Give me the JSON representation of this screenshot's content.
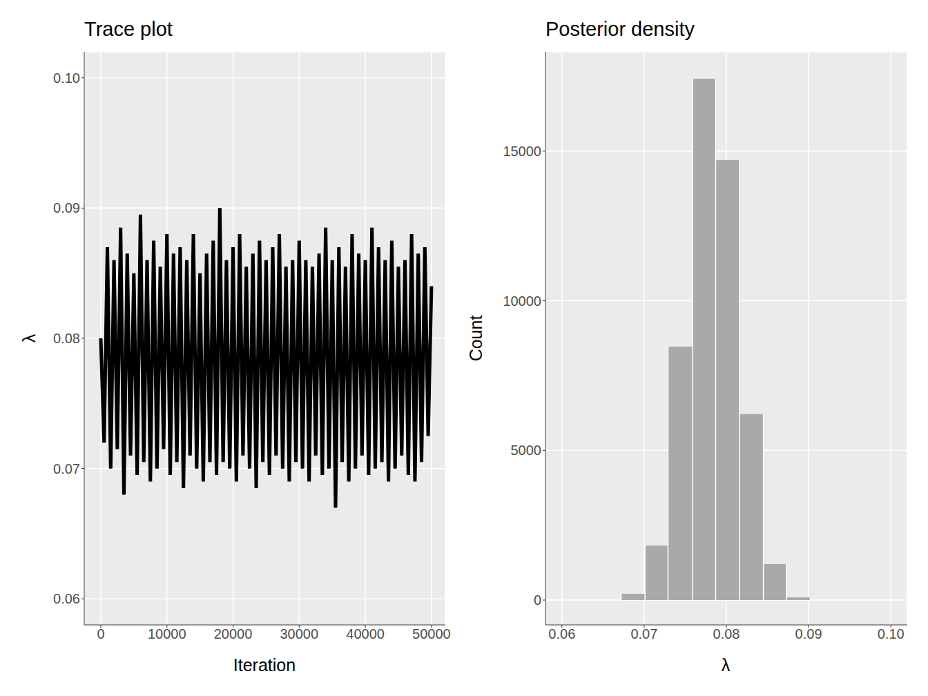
{
  "chart_data": [
    {
      "type": "line",
      "title": "Trace plot",
      "x_label": "Iteration",
      "y_label": "λ",
      "x": [
        0,
        500,
        1000,
        1500,
        2000,
        2500,
        3000,
        3500,
        4000,
        4500,
        5000,
        5500,
        6000,
        6500,
        7000,
        7500,
        8000,
        8500,
        9000,
        9500,
        10000,
        10500,
        11000,
        11500,
        12000,
        12500,
        13000,
        13500,
        14000,
        14500,
        15000,
        15500,
        16000,
        16500,
        17000,
        17500,
        18000,
        18500,
        19000,
        19500,
        20000,
        20500,
        21000,
        21500,
        22000,
        22500,
        23000,
        23500,
        24000,
        24500,
        25000,
        25500,
        26000,
        26500,
        27000,
        27500,
        28000,
        28500,
        29000,
        29500,
        30000,
        30500,
        31000,
        31500,
        32000,
        32500,
        33000,
        33500,
        34000,
        34500,
        35000,
        35500,
        36000,
        36500,
        37000,
        37500,
        38000,
        38500,
        39000,
        39500,
        40000,
        40500,
        41000,
        41500,
        42000,
        42500,
        43000,
        43500,
        44000,
        44500,
        45000,
        45500,
        46000,
        46500,
        47000,
        47500,
        48000,
        48500,
        49000,
        49500,
        50000
      ],
      "values": [
        0.08,
        0.072,
        0.087,
        0.07,
        0.086,
        0.0715,
        0.0885,
        0.068,
        0.0865,
        0.071,
        0.085,
        0.0695,
        0.0895,
        0.0705,
        0.086,
        0.069,
        0.0875,
        0.07,
        0.0855,
        0.0715,
        0.088,
        0.0695,
        0.0865,
        0.0705,
        0.087,
        0.0685,
        0.086,
        0.071,
        0.088,
        0.07,
        0.085,
        0.069,
        0.0865,
        0.0705,
        0.0875,
        0.0695,
        0.09,
        0.0705,
        0.086,
        0.07,
        0.087,
        0.069,
        0.088,
        0.071,
        0.0855,
        0.07,
        0.0865,
        0.0685,
        0.0875,
        0.0705,
        0.086,
        0.0695,
        0.087,
        0.071,
        0.088,
        0.07,
        0.0855,
        0.069,
        0.086,
        0.0705,
        0.0875,
        0.07,
        0.086,
        0.069,
        0.0855,
        0.071,
        0.0865,
        0.0695,
        0.0885,
        0.07,
        0.086,
        0.067,
        0.087,
        0.0705,
        0.0855,
        0.069,
        0.088,
        0.07,
        0.0865,
        0.071,
        0.086,
        0.0695,
        0.0885,
        0.07,
        0.087,
        0.0705,
        0.086,
        0.069,
        0.0875,
        0.07,
        0.0855,
        0.071,
        0.086,
        0.0695,
        0.088,
        0.069,
        0.0865,
        0.0705,
        0.087,
        0.0725,
        0.084
      ],
      "color": "#000000",
      "xlim": [
        -2500,
        52100
      ],
      "xticks": [
        0,
        10000,
        20000,
        30000,
        40000,
        50000
      ],
      "ylim": [
        0.058,
        0.102
      ],
      "yticks": [
        0.06,
        0.07,
        0.08,
        0.09,
        {
          "value": 0.1,
          "label": "0.10"
        }
      ],
      "grid": true
    },
    {
      "type": "histogram",
      "title": "Posterior density",
      "x_label": "λ",
      "y_label": "Count",
      "bins": [
        0.0672,
        0.0701,
        0.0729,
        0.0759,
        0.0787,
        0.0816,
        0.0845,
        0.0873,
        0.0902
      ],
      "values": [
        210,
        1820,
        8470,
        17420,
        14700,
        6210,
        1200,
        90
      ],
      "color": "#a9a9a9",
      "xlim": [
        0.058,
        0.102
      ],
      "xticks": [
        0.06,
        0.07,
        0.08,
        0.09,
        {
          "value": 0.1,
          "label": "0.10"
        }
      ],
      "ylim": [
        -830,
        18320
      ],
      "yticks": [
        0,
        5000,
        10000,
        15000
      ],
      "grid": true
    }
  ]
}
